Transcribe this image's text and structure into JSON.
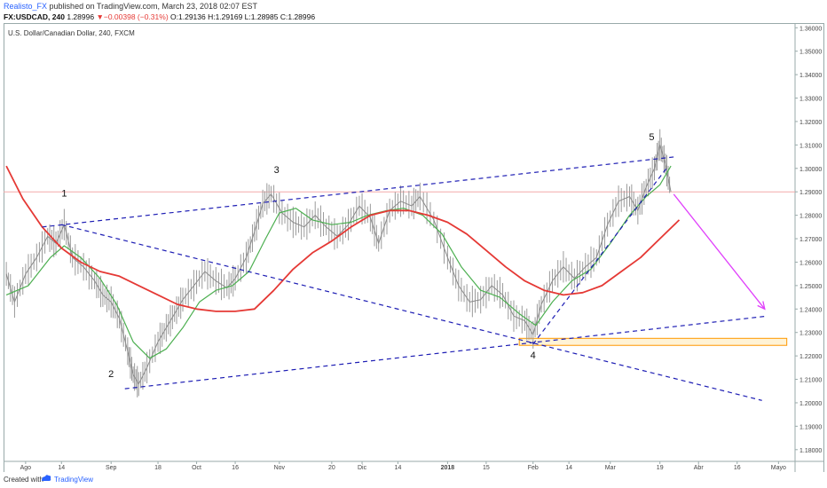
{
  "header": {
    "user": "Realisto_FX",
    "published": "published on TradingView.com, March 23, 2018 02:07 EST",
    "symbol": "FX:USDCAD, 240",
    "last": "1.28996",
    "change": "▼−0.00398 (−0.31%)",
    "ohlc": "O:1.29136 H:1.29169 L:1.28985 C:1.28996"
  },
  "pane_title": "U.S. Dollar/Canadian Dollar, 240, FXCM",
  "footer": {
    "created": "Created with",
    "brand": "TradingView"
  },
  "colors": {
    "price": "#8a8a8a",
    "sma_fast": "#4caf50",
    "sma_slow": "#e53935",
    "trendline": "#1e1eb4",
    "forecast_arrow": "#e040fb",
    "support_zone": "#ff9800",
    "last_price_line": "#f3a9a9"
  },
  "chart_data": {
    "type": "line",
    "y_axis": {
      "range": [
        1.175,
        1.362
      ],
      "ticks": [
        "1.36000",
        "1.35000",
        "1.34000",
        "1.33000",
        "1.32000",
        "1.31000",
        "1.30000",
        "1.29000",
        "1.28000",
        "1.27000",
        "1.26000",
        "1.25000",
        "1.24000",
        "1.23000",
        "1.22000",
        "1.21000",
        "1.20000",
        "1.19000",
        "1.18000"
      ]
    },
    "x_axis": {
      "ticks": [
        "Ago",
        "14",
        "Sep",
        "18",
        "Oct",
        "16",
        "Nov",
        "20",
        "Dic",
        "14",
        "2018",
        "15",
        "Feb",
        "14",
        "Mar",
        "19",
        "Abr",
        "16",
        "Mayo"
      ]
    },
    "last_price": 1.28996,
    "series": [
      {
        "name": "",
        "kind": "price",
        "points": [
          [
            "2017-07-25",
            1.255
          ],
          [
            "2017-07-28",
            1.243
          ],
          [
            "2017-08-01",
            1.255
          ],
          [
            "2017-08-05",
            1.262
          ],
          [
            "2017-08-09",
            1.271
          ],
          [
            "2017-08-12",
            1.268
          ],
          [
            "2017-08-15",
            1.276
          ],
          [
            "2017-08-18",
            1.262
          ],
          [
            "2017-08-22",
            1.258
          ],
          [
            "2017-08-26",
            1.252
          ],
          [
            "2017-08-29",
            1.246
          ],
          [
            "2017-09-01",
            1.243
          ],
          [
            "2017-09-04",
            1.236
          ],
          [
            "2017-09-07",
            1.222
          ],
          [
            "2017-09-09",
            1.212
          ],
          [
            "2017-09-11",
            1.208
          ],
          [
            "2017-09-14",
            1.215
          ],
          [
            "2017-09-18",
            1.226
          ],
          [
            "2017-09-21",
            1.232
          ],
          [
            "2017-09-24",
            1.238
          ],
          [
            "2017-09-27",
            1.244
          ],
          [
            "2017-10-01",
            1.25
          ],
          [
            "2017-10-05",
            1.256
          ],
          [
            "2017-10-09",
            1.252
          ],
          [
            "2017-10-13",
            1.249
          ],
          [
            "2017-10-16",
            1.253
          ],
          [
            "2017-10-20",
            1.262
          ],
          [
            "2017-10-23",
            1.273
          ],
          [
            "2017-10-26",
            1.285
          ],
          [
            "2017-10-29",
            1.289
          ],
          [
            "2017-11-02",
            1.281
          ],
          [
            "2017-11-06",
            1.277
          ],
          [
            "2017-11-10",
            1.275
          ],
          [
            "2017-11-14",
            1.28
          ],
          [
            "2017-11-18",
            1.275
          ],
          [
            "2017-11-22",
            1.271
          ],
          [
            "2017-11-26",
            1.276
          ],
          [
            "2017-11-30",
            1.284
          ],
          [
            "2017-12-04",
            1.279
          ],
          [
            "2017-12-07",
            1.268
          ],
          [
            "2017-12-11",
            1.282
          ],
          [
            "2017-12-15",
            1.286
          ],
          [
            "2017-12-19",
            1.284
          ],
          [
            "2017-12-22",
            1.288
          ],
          [
            "2017-12-27",
            1.278
          ],
          [
            "2018-01-01",
            1.262
          ],
          [
            "2018-01-05",
            1.25
          ],
          [
            "2018-01-09",
            1.243
          ],
          [
            "2018-01-13",
            1.244
          ],
          [
            "2018-01-17",
            1.25
          ],
          [
            "2018-01-21",
            1.246
          ],
          [
            "2018-01-25",
            1.237
          ],
          [
            "2018-01-29",
            1.235
          ],
          [
            "2018-02-01",
            1.229
          ],
          [
            "2018-02-04",
            1.242
          ],
          [
            "2018-02-08",
            1.252
          ],
          [
            "2018-02-12",
            1.258
          ],
          [
            "2018-02-16",
            1.253
          ],
          [
            "2018-02-20",
            1.258
          ],
          [
            "2018-02-24",
            1.262
          ],
          [
            "2018-02-28",
            1.276
          ],
          [
            "2018-03-04",
            1.286
          ],
          [
            "2018-03-08",
            1.288
          ],
          [
            "2018-03-11",
            1.282
          ],
          [
            "2018-03-14",
            1.292
          ],
          [
            "2018-03-17",
            1.3
          ],
          [
            "2018-03-19",
            1.31
          ],
          [
            "2018-03-21",
            1.302
          ],
          [
            "2018-03-23",
            1.29
          ]
        ]
      },
      {
        "name": "",
        "kind": "sma_fast",
        "points": [
          [
            "2017-07-25",
            1.246
          ],
          [
            "2017-08-02",
            1.25
          ],
          [
            "2017-08-10",
            1.262
          ],
          [
            "2017-08-15",
            1.267
          ],
          [
            "2017-08-21",
            1.262
          ],
          [
            "2017-08-28",
            1.253
          ],
          [
            "2017-09-03",
            1.242
          ],
          [
            "2017-09-09",
            1.226
          ],
          [
            "2017-09-15",
            1.219
          ],
          [
            "2017-09-21",
            1.223
          ],
          [
            "2017-09-27",
            1.232
          ],
          [
            "2017-10-03",
            1.243
          ],
          [
            "2017-10-09",
            1.248
          ],
          [
            "2017-10-15",
            1.25
          ],
          [
            "2017-10-21",
            1.256
          ],
          [
            "2017-10-27",
            1.27
          ],
          [
            "2017-11-01",
            1.281
          ],
          [
            "2017-11-07",
            1.283
          ],
          [
            "2017-11-13",
            1.278
          ],
          [
            "2017-11-20",
            1.276
          ],
          [
            "2017-11-27",
            1.277
          ],
          [
            "2017-12-03",
            1.28
          ],
          [
            "2017-12-10",
            1.282
          ],
          [
            "2017-12-16",
            1.283
          ],
          [
            "2017-12-23",
            1.28
          ],
          [
            "2017-12-30",
            1.272
          ],
          [
            "2018-01-06",
            1.258
          ],
          [
            "2018-01-13",
            1.248
          ],
          [
            "2018-01-20",
            1.245
          ],
          [
            "2018-01-27",
            1.238
          ],
          [
            "2018-02-02",
            1.233
          ],
          [
            "2018-02-08",
            1.243
          ],
          [
            "2018-02-15",
            1.252
          ],
          [
            "2018-02-22",
            1.257
          ],
          [
            "2018-03-01",
            1.268
          ],
          [
            "2018-03-08",
            1.28
          ],
          [
            "2018-03-14",
            1.288
          ],
          [
            "2018-03-19",
            1.293
          ],
          [
            "2018-03-23",
            1.301
          ]
        ]
      },
      {
        "name": "",
        "kind": "sma_slow",
        "points": [
          [
            "2017-07-25",
            1.301
          ],
          [
            "2017-07-31",
            1.287
          ],
          [
            "2017-08-07",
            1.275
          ],
          [
            "2017-08-14",
            1.266
          ],
          [
            "2017-08-21",
            1.26
          ],
          [
            "2017-08-28",
            1.256
          ],
          [
            "2017-09-04",
            1.254
          ],
          [
            "2017-09-11",
            1.25
          ],
          [
            "2017-09-18",
            1.246
          ],
          [
            "2017-09-25",
            1.242
          ],
          [
            "2017-10-02",
            1.24
          ],
          [
            "2017-10-09",
            1.239
          ],
          [
            "2017-10-16",
            1.239
          ],
          [
            "2017-10-23",
            1.24
          ],
          [
            "2017-10-30",
            1.248
          ],
          [
            "2017-11-06",
            1.257
          ],
          [
            "2017-11-13",
            1.264
          ],
          [
            "2017-11-20",
            1.269
          ],
          [
            "2017-11-27",
            1.275
          ],
          [
            "2017-12-04",
            1.28
          ],
          [
            "2017-12-11",
            1.282
          ],
          [
            "2017-12-18",
            1.282
          ],
          [
            "2017-12-25",
            1.28
          ],
          [
            "2018-01-01",
            1.277
          ],
          [
            "2018-01-08",
            1.272
          ],
          [
            "2018-01-15",
            1.265
          ],
          [
            "2018-01-22",
            1.258
          ],
          [
            "2018-01-29",
            1.252
          ],
          [
            "2018-02-05",
            1.248
          ],
          [
            "2018-02-12",
            1.246
          ],
          [
            "2018-02-19",
            1.247
          ],
          [
            "2018-02-26",
            1.25
          ],
          [
            "2018-03-05",
            1.256
          ],
          [
            "2018-03-12",
            1.262
          ],
          [
            "2018-03-19",
            1.27
          ],
          [
            "2018-03-26",
            1.278
          ]
        ]
      }
    ],
    "trendlines": [
      {
        "from": [
          "2017-08-07",
          1.275
        ],
        "to": [
          "2018-03-25",
          1.305
        ]
      },
      {
        "from": [
          "2017-08-14",
          1.276
        ],
        "to": [
          "2018-04-25",
          1.201
        ]
      },
      {
        "from": [
          "2017-09-06",
          1.206
        ],
        "to": [
          "2018-04-27",
          1.237
        ]
      },
      {
        "from": [
          "2018-02-01",
          1.225
        ],
        "to": [
          "2018-03-22",
          1.301
        ]
      }
    ],
    "forecast_arrow": {
      "from": [
        "2018-03-24",
        1.289
      ],
      "to": [
        "2018-04-26",
        1.24
      ]
    },
    "support_zone": {
      "x": [
        "2018-01-27",
        "2018-05-04"
      ],
      "y": [
        1.2245,
        1.2275
      ]
    },
    "annotations": [
      {
        "label": "1",
        "at": [
          "2017-08-15",
          1.288
        ]
      },
      {
        "label": "2",
        "at": [
          "2017-09-01",
          1.211
        ]
      },
      {
        "label": "3",
        "at": [
          "2017-10-31",
          1.298
        ]
      },
      {
        "label": "4",
        "at": [
          "2018-02-01",
          1.219
        ]
      },
      {
        "label": "5",
        "at": [
          "2018-03-16",
          1.312
        ]
      }
    ]
  }
}
